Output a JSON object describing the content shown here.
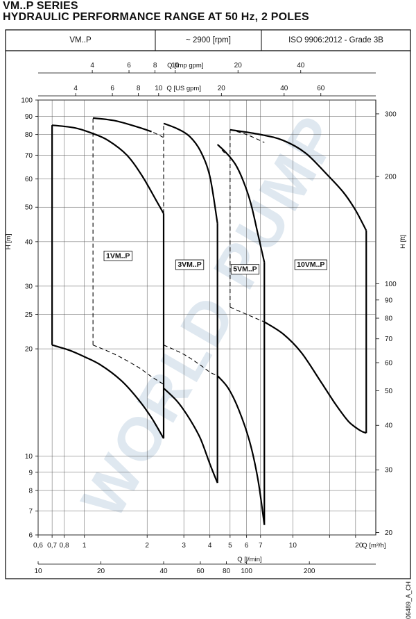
{
  "header": {
    "title": "VM..P SERIES",
    "subtitle": "HYDRAULIC PERFORMANCE RANGE AT 50 Hz, 2 POLES",
    "cells": [
      "VM..P",
      "~ 2900 [rpm]",
      "ISO 9906:2012 - Grade 3B"
    ]
  },
  "drawing_code": "06489_A_CH",
  "chart_data": {
    "type": "line",
    "scale": "log-log",
    "xlim": [
      0.6,
      25
    ],
    "ylim": [
      6,
      100
    ],
    "xlabel": "Q [m³/h]",
    "ylabel": "H [m]",
    "y2label": "H [ft]",
    "x_top1_label": "Q [Imp gpm]",
    "x_top2_label": "Q [US gpm]",
    "x_bottom2_label": "Q [l/min]",
    "x_ticks": [
      {
        "v": 0.6,
        "label": "0,6"
      },
      {
        "v": 0.7,
        "label": "0,7"
      },
      {
        "v": 0.8,
        "label": "0,8"
      },
      {
        "v": 1,
        "label": "1"
      },
      {
        "v": 2,
        "label": "2"
      },
      {
        "v": 3,
        "label": "3"
      },
      {
        "v": 4,
        "label": "4"
      },
      {
        "v": 5,
        "label": "5"
      },
      {
        "v": 6,
        "label": "6"
      },
      {
        "v": 7,
        "label": "7"
      },
      {
        "v": 10,
        "label": "10"
      },
      {
        "v": 15,
        "label": ""
      },
      {
        "v": 20,
        "label": ""
      }
    ],
    "x_end_label": "20",
    "y_ticks": [
      {
        "v": 6,
        "label": "6"
      },
      {
        "v": 7,
        "label": "7"
      },
      {
        "v": 8,
        "label": "8"
      },
      {
        "v": 9,
        "label": "9"
      },
      {
        "v": 10,
        "label": "10"
      },
      {
        "v": 20,
        "label": "20"
      },
      {
        "v": 25,
        "label": "25"
      },
      {
        "v": 30,
        "label": "30"
      },
      {
        "v": 40,
        "label": "40"
      },
      {
        "v": 50,
        "label": "50"
      },
      {
        "v": 60,
        "label": "60"
      },
      {
        "v": 70,
        "label": "70"
      },
      {
        "v": 80,
        "label": "80"
      },
      {
        "v": 90,
        "label": "90"
      },
      {
        "v": 100,
        "label": "100"
      }
    ],
    "ft_ticks": [
      20,
      30,
      40,
      50,
      60,
      70,
      80,
      90,
      100,
      200,
      300
    ],
    "imp_gpm_ticks": [
      4,
      6,
      8,
      10,
      20,
      40
    ],
    "us_gpm_ticks": [
      4,
      6,
      8,
      10,
      20,
      40,
      60
    ],
    "lmin_ticks": [
      10,
      20,
      40,
      60,
      80,
      100,
      200
    ],
    "models": [
      {
        "name": "1VM..P",
        "label_at": [
          1.45,
          36
        ],
        "left_x": 0.7,
        "right_x": 2.4,
        "dash_x": 1.1,
        "top_curve": [
          [
            0.7,
            85
          ],
          [
            0.9,
            83.5
          ],
          [
            1.1,
            80.5
          ],
          [
            1.3,
            77
          ],
          [
            1.6,
            70
          ],
          [
            1.9,
            61
          ],
          [
            2.2,
            52.5
          ],
          [
            2.4,
            48
          ]
        ],
        "bottom_curve": [
          [
            0.7,
            20.5
          ],
          [
            0.85,
            19.8
          ],
          [
            1.0,
            19
          ],
          [
            1.2,
            18
          ],
          [
            1.5,
            16.3
          ],
          [
            1.8,
            14.5
          ],
          [
            2.1,
            12.8
          ],
          [
            2.4,
            11.2
          ]
        ],
        "top_dash": [
          [
            1.1,
            89
          ],
          [
            1.4,
            87.5
          ],
          [
            1.8,
            84
          ],
          [
            2.1,
            81.5
          ],
          [
            2.4,
            78.5
          ]
        ],
        "bottom_dash": [
          [
            1.1,
            20.5
          ],
          [
            1.4,
            19.3
          ],
          [
            1.8,
            17.8
          ],
          [
            2.1,
            16.7
          ],
          [
            2.4,
            15.9
          ]
        ]
      },
      {
        "name": "3VM..P",
        "label_at": [
          3.2,
          34
        ],
        "left_x": 2.4,
        "right_x": 4.35,
        "dash_x": 2.4,
        "top_curve": [
          [
            2.4,
            86
          ],
          [
            2.8,
            83
          ],
          [
            3.2,
            79
          ],
          [
            3.6,
            72
          ],
          [
            4.0,
            61
          ],
          [
            4.35,
            45
          ]
        ],
        "bottom_curve": [
          [
            2.4,
            15.5
          ],
          [
            2.8,
            14.2
          ],
          [
            3.2,
            12.7
          ],
          [
            3.6,
            11.2
          ],
          [
            4.0,
            9.5
          ],
          [
            4.35,
            8.4
          ]
        ],
        "top_dash": [
          [
            4.35,
            75
          ],
          [
            4.7,
            71
          ]
        ],
        "bottom_dash": [
          [
            2.4,
            20.5
          ],
          [
            3.0,
            19.3
          ],
          [
            3.6,
            18
          ],
          [
            4.0,
            17.2
          ],
          [
            4.35,
            16.8
          ]
        ]
      },
      {
        "name": "5VM..P",
        "label_at": [
          5.9,
          33
        ],
        "left_x": 5.0,
        "right_x": 7.3,
        "dash_x": 5.0,
        "top_curve": [
          [
            4.35,
            75
          ],
          [
            4.8,
            71
          ],
          [
            5.3,
            66
          ],
          [
            5.8,
            59
          ],
          [
            6.3,
            51
          ],
          [
            6.8,
            42
          ],
          [
            7.3,
            35
          ]
        ],
        "bottom_curve": [
          [
            4.35,
            16.8
          ],
          [
            4.9,
            15.5
          ],
          [
            5.5,
            13.5
          ],
          [
            6.2,
            11
          ],
          [
            6.8,
            8.6
          ],
          [
            7.3,
            6.4
          ]
        ],
        "top_dash": [
          [
            5.0,
            82.5
          ],
          [
            6.0,
            80
          ],
          [
            7.3,
            76
          ]
        ],
        "bottom_dash": [
          [
            5.0,
            26.2
          ],
          [
            6.0,
            25
          ],
          [
            7.3,
            23.8
          ]
        ]
      },
      {
        "name": "10VM..P",
        "label_at": [
          12.2,
          34
        ],
        "left_x": 5.0,
        "right_x": 22.5,
        "dash_x": 5.0,
        "top_curve": [
          [
            5.0,
            82.5
          ],
          [
            7.0,
            80
          ],
          [
            9.0,
            77
          ],
          [
            11.5,
            71
          ],
          [
            14.5,
            62
          ],
          [
            17.5,
            55
          ],
          [
            20,
            49
          ],
          [
            22.5,
            43
          ]
        ],
        "bottom_curve": [
          [
            7.3,
            23.8
          ],
          [
            9.0,
            22
          ],
          [
            11,
            19.5
          ],
          [
            13.5,
            16.3
          ],
          [
            16,
            14
          ],
          [
            18.5,
            12.5
          ],
          [
            21,
            11.8
          ],
          [
            22.5,
            11.6
          ]
        ],
        "top_dash": [],
        "bottom_dash": []
      }
    ],
    "watermark": "WORLD PUMP"
  }
}
